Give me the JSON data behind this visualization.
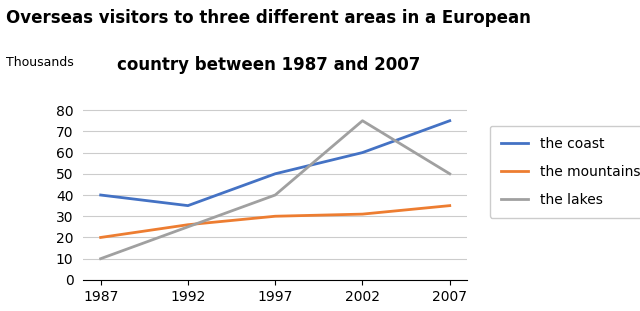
{
  "title_line1": "Overseas visitors to three different areas in a European",
  "title_line2": "country between 1987 and 2007",
  "ylabel": "Thousands",
  "years": [
    1987,
    1992,
    1997,
    2002,
    2007
  ],
  "series": {
    "the coast": {
      "values": [
        40,
        35,
        50,
        60,
        75
      ],
      "color": "#4472C4",
      "linewidth": 2.0
    },
    "the mountains": {
      "values": [
        20,
        26,
        30,
        31,
        35
      ],
      "color": "#ED7D31",
      "linewidth": 2.0
    },
    "the lakes": {
      "values": [
        10,
        25,
        40,
        75,
        50
      ],
      "color": "#A0A0A0",
      "linewidth": 2.0
    }
  },
  "ylim": [
    0,
    85
  ],
  "yticks": [
    0,
    10,
    20,
    30,
    40,
    50,
    60,
    70,
    80
  ],
  "background_color": "#ffffff",
  "grid_color": "#cccccc",
  "title_fontsize": 12,
  "legend_fontsize": 10,
  "tick_fontsize": 10,
  "ylabel_fontsize": 9
}
